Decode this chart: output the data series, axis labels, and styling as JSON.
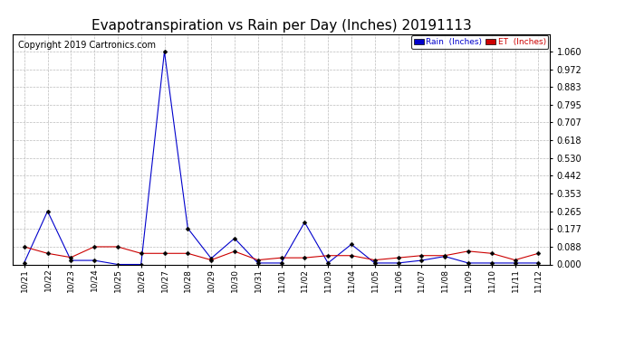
{
  "title": "Evapotranspiration vs Rain per Day (Inches) 20191113",
  "copyright": "Copyright 2019 Cartronics.com",
  "x_labels": [
    "10/21",
    "10/22",
    "10/23",
    "10/24",
    "10/25",
    "10/26",
    "10/27",
    "10/28",
    "10/29",
    "10/30",
    "10/31",
    "11/01",
    "11/02",
    "11/03",
    "11/04",
    "11/05",
    "11/06",
    "11/07",
    "11/08",
    "11/09",
    "11/10",
    "11/11",
    "11/12"
  ],
  "rain_values": [
    0.008,
    0.265,
    0.02,
    0.02,
    0.0,
    0.0,
    1.06,
    0.18,
    0.03,
    0.13,
    0.007,
    0.007,
    0.21,
    0.007,
    0.1,
    0.007,
    0.007,
    0.02,
    0.04,
    0.007,
    0.007,
    0.007,
    0.007
  ],
  "et_values": [
    0.088,
    0.055,
    0.035,
    0.088,
    0.088,
    0.055,
    0.055,
    0.055,
    0.022,
    0.065,
    0.022,
    0.033,
    0.033,
    0.044,
    0.044,
    0.022,
    0.033,
    0.044,
    0.044,
    0.066,
    0.055,
    0.022,
    0.055
  ],
  "rain_color": "#0000cc",
  "et_color": "#cc0000",
  "ylim_min": 0.0,
  "ylim_max": 1.148,
  "yticks": [
    0.0,
    0.088,
    0.177,
    0.265,
    0.353,
    0.442,
    0.53,
    0.618,
    0.707,
    0.795,
    0.883,
    0.972,
    1.06
  ],
  "background_color": "#ffffff",
  "grid_color": "#bbbbbb",
  "legend_rain_label": "Rain  (Inches)",
  "legend_et_label": "ET  (Inches)",
  "legend_rain_bg": "#0000cc",
  "legend_et_bg": "#cc0000",
  "title_fontsize": 11,
  "copyright_fontsize": 7
}
